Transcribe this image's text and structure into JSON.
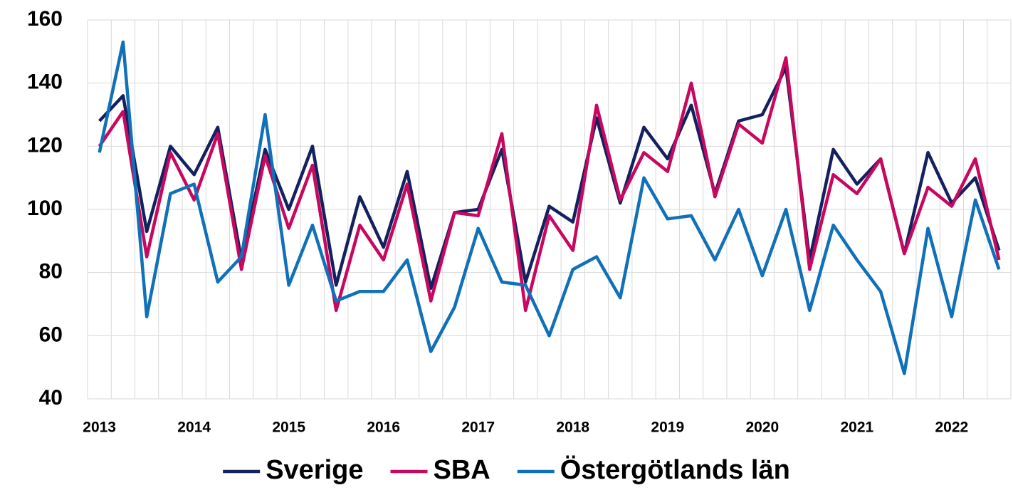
{
  "chart_data": {
    "type": "line",
    "categories": [
      "2013",
      null,
      null,
      null,
      "2014",
      null,
      null,
      null,
      "2015",
      null,
      null,
      null,
      "2016",
      null,
      null,
      null,
      "2017",
      null,
      null,
      null,
      "2018",
      null,
      null,
      null,
      "2019",
      null,
      null,
      null,
      "2020",
      null,
      null,
      null,
      "2021",
      null,
      null,
      null,
      "2022",
      null,
      null
    ],
    "series": [
      {
        "name": "Sverige",
        "color": "#14215f",
        "values": [
          128,
          136,
          93,
          120,
          111,
          126,
          84,
          119,
          100,
          120,
          76,
          104,
          88,
          112,
          75,
          99,
          100,
          119,
          77,
          101,
          96,
          129,
          102,
          126,
          116,
          133,
          105,
          128,
          130,
          145,
          84,
          119,
          108,
          116,
          86,
          118,
          102,
          110,
          87
        ]
      },
      {
        "name": "SBA",
        "color": "#c8075f",
        "values": [
          120,
          131,
          85,
          118,
          103,
          124,
          81,
          117,
          94,
          114,
          68,
          95,
          84,
          108,
          71,
          99,
          98,
          124,
          68,
          98,
          87,
          133,
          103,
          118,
          112,
          140,
          104,
          127,
          121,
          148,
          81,
          111,
          105,
          116,
          86,
          107,
          101,
          116,
          84
        ]
      },
      {
        "name": "Östergötlands län",
        "color": "#1070b8",
        "values": [
          118,
          153,
          66,
          105,
          108,
          77,
          85,
          130,
          76,
          95,
          71,
          74,
          74,
          84,
          55,
          69,
          94,
          77,
          76,
          60,
          81,
          85,
          72,
          110,
          97,
          98,
          84,
          100,
          79,
          100,
          68,
          95,
          84,
          74,
          48,
          94,
          66,
          103,
          81
        ]
      }
    ],
    "ylim": [
      40,
      160
    ],
    "yticks": [
      40,
      60,
      80,
      100,
      120,
      140,
      160
    ],
    "grid": true,
    "legend": "bottom"
  }
}
